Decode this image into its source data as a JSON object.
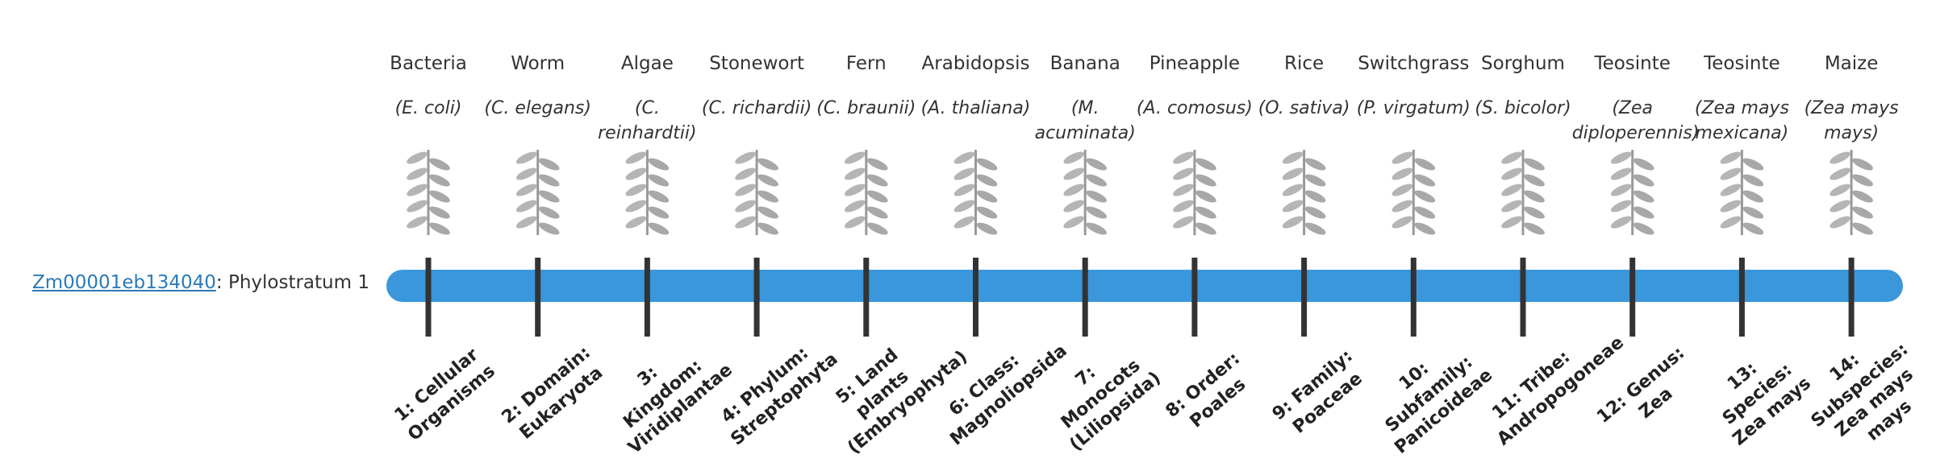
{
  "gene": {
    "link": "Zm00001eb134040",
    "suffix": ": Phylostratum 1"
  },
  "organisms": [
    {
      "common": "Bacteria",
      "scientific": "(E. coli)",
      "stratum": "1: Cellular Organisms"
    },
    {
      "common": "Worm",
      "scientific": "(C. elegans)",
      "stratum": "2: Domain: Eukaryota"
    },
    {
      "common": "Algae",
      "scientific": "(C. reinhardtii)",
      "stratum": "3: Kingdom: Viridiplantae"
    },
    {
      "common": "Stonewort",
      "scientific": "(C. richardii)",
      "stratum": "4: Phylum: Streptophyta"
    },
    {
      "common": "Fern",
      "scientific": "(C. braunii)",
      "stratum": "5: Land plants (Embryophyta)"
    },
    {
      "common": "Arabidopsis",
      "scientific": "(A. thaliana)",
      "stratum": "6: Class: Magnoliopsida"
    },
    {
      "common": "Banana",
      "scientific": "(M. acuminata)",
      "stratum": "7: Monocots (Liliopsida)"
    },
    {
      "common": "Pineapple",
      "scientific": "(A. comosus)",
      "stratum": "8: Order: Poales"
    },
    {
      "common": "Rice",
      "scientific": "(O. sativa)",
      "stratum": "9: Family: Poaceae"
    },
    {
      "common": "Switchgrass",
      "scientific": "(P. virgatum)",
      "stratum": "10: Subfamily: Panicoideae"
    },
    {
      "common": "Sorghum",
      "scientific": "(S. bicolor)",
      "stratum": "11: Tribe: Andropogoneae"
    },
    {
      "common": "Teosinte",
      "scientific": "(Zea diploperennis)",
      "stratum": "12: Genus: Zea"
    },
    {
      "common": "Teosinte",
      "scientific": "(Zea mays mexicana)",
      "stratum": "13: Species: Zea mays"
    },
    {
      "common": "Maize",
      "scientific": "(Zea mays mays)",
      "stratum": "14: Subspecies: Zea mays mays"
    }
  ]
}
